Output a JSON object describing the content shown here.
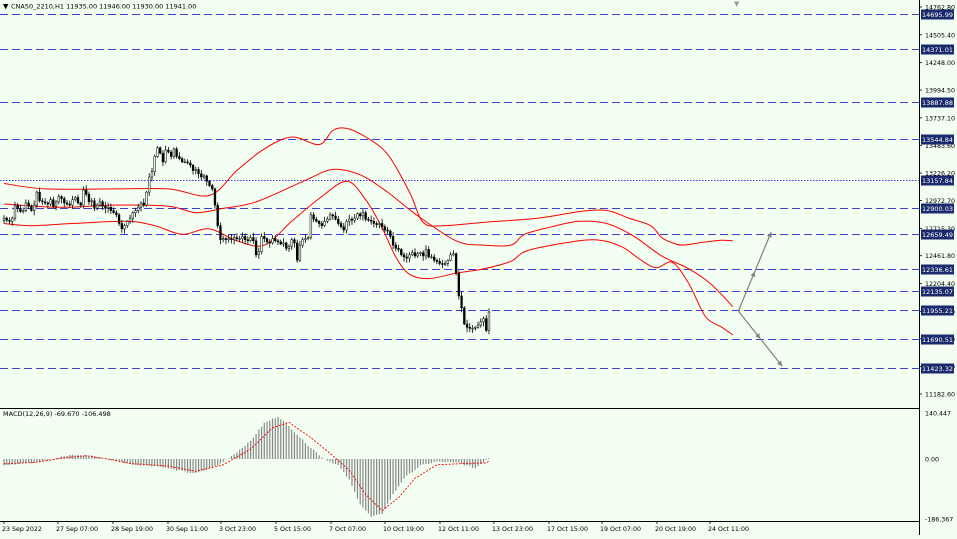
{
  "header": {
    "symbol_info": "CNA50_2210,H1  11935.00 11946.00 11930.00 11941.00",
    "macd_info": "MACD(12,26,9) -69.670 -106.498"
  },
  "colors": {
    "background": "#f1fef1",
    "candle": "#000000",
    "bollinger": "#ff0000",
    "level_line": "#0000cc",
    "level_label_bg": "#1a2a6c",
    "level_label_text": "#ffffff",
    "arrow": "#808080",
    "macd_hist": "#888888",
    "signal": "#ff0000"
  },
  "chart_data": [
    {
      "type": "candlestick",
      "instrument": "CNA50_2210",
      "timeframe": "H1",
      "ohlc_last": {
        "open": 11935.0,
        "high": 11946.0,
        "low": 11930.0,
        "close": 11941.0
      },
      "ylim": [
        11000,
        14800
      ],
      "y_ticks": [
        14762.8,
        14505.4,
        14248.0,
        13994.5,
        13737.1,
        13483.6,
        13226.2,
        12972.7,
        12715.3,
        12461.8,
        12204.4,
        11947.0,
        11693.5,
        11436.1,
        11182.6
      ],
      "x_ticks": [
        "23 Sep 2022",
        "27 Sep 07:00",
        "28 Sep 19:00",
        "30 Sep 11:00",
        "3 Oct 23:00",
        "5 Oct 15:00",
        "7 Oct 07:00",
        "10 Oct 19:00",
        "12 Oct 11:00",
        "13 Oct 23:00",
        "17 Oct 15:00",
        "19 Oct 07:00",
        "20 Oct 19:00",
        "24 Oct 11:00"
      ],
      "levels": [
        {
          "value": 14695.99,
          "style": "dashed",
          "label": "14695.99"
        },
        {
          "value": 14371.01,
          "style": "dashed",
          "label": "14371.01"
        },
        {
          "value": 13887.88,
          "style": "dashed",
          "label": "13887.88"
        },
        {
          "value": 13544.84,
          "style": "dashed",
          "label": "13544.84"
        },
        {
          "value": 13157.84,
          "style": "dotted",
          "label": "13157.84"
        },
        {
          "value": 12900.03,
          "style": "dashed",
          "label": "12900.03"
        },
        {
          "value": 12659.49,
          "style": "dashed",
          "label": "12659.49"
        },
        {
          "value": 12336.61,
          "style": "dashed",
          "label": "12336.61"
        },
        {
          "value": 12135.07,
          "style": "dashed",
          "label": "12135.07"
        },
        {
          "value": 11955.21,
          "style": "dashed",
          "label": "11955.21"
        },
        {
          "value": 11690.51,
          "style": "dashed",
          "label": "11690.51"
        },
        {
          "value": 11423.32,
          "style": "dashed",
          "label": "11423.32"
        }
      ],
      "close_series": [
        12810,
        12790,
        12780,
        12810,
        12930,
        12900,
        12870,
        12880,
        12950,
        12920,
        12880,
        12930,
        13050,
        12970,
        12960,
        12950,
        12940,
        12980,
        12920,
        12960,
        13010,
        12990,
        12950,
        12940,
        12930,
        12980,
        13000,
        12950,
        12930,
        13070,
        13030,
        12960,
        12970,
        12900,
        12930,
        12960,
        12920,
        12900,
        12910,
        12880,
        12860,
        12840,
        12760,
        12710,
        12740,
        12780,
        12810,
        12860,
        12880,
        12910,
        12950,
        12930,
        13050,
        13190,
        13240,
        13380,
        13460,
        13410,
        13330,
        13440,
        13420,
        13380,
        13450,
        13380,
        13360,
        13330,
        13330,
        13320,
        13300,
        13250,
        13260,
        13220,
        13190,
        13200,
        13150,
        13110,
        13080,
        12930,
        12740,
        12610,
        12620,
        12610,
        12620,
        12610,
        12630,
        12620,
        12620,
        12640,
        12610,
        12600,
        12630,
        12600,
        12470,
        12500,
        12640,
        12620,
        12590,
        12580,
        12620,
        12600,
        12590,
        12570,
        12580,
        12530,
        12550,
        12610,
        12580,
        12420,
        12560,
        12610,
        12620,
        12630,
        12840,
        12800,
        12780,
        12760,
        12740,
        12780,
        12800,
        12840,
        12830,
        12800,
        12760,
        12730,
        12700,
        12780,
        12800,
        12790,
        12810,
        12850,
        12830,
        12860,
        12800,
        12790,
        12780,
        12760,
        12750,
        12760,
        12730,
        12700,
        12690,
        12640,
        12560,
        12530,
        12520,
        12470,
        12450,
        12440,
        12470,
        12490,
        12460,
        12480,
        12490,
        12460,
        12520,
        12450,
        12450,
        12420,
        12410,
        12390,
        12380,
        12390,
        12420,
        12470,
        12480,
        12300,
        12090,
        11980,
        11830,
        11800,
        11790,
        11790,
        11800,
        11820,
        11850,
        11880,
        11770,
        11941
      ],
      "bollinger": {
        "upper": [
          [
            0,
            13130
          ],
          [
            15,
            13080
          ],
          [
            40,
            13080
          ],
          [
            60,
            13080
          ],
          [
            75,
            13020
          ],
          [
            85,
            13250
          ],
          [
            95,
            13450
          ],
          [
            105,
            13560
          ],
          [
            115,
            13490
          ],
          [
            120,
            13620
          ],
          [
            125,
            13640
          ],
          [
            132,
            13560
          ],
          [
            140,
            13400
          ],
          [
            148,
            13050
          ],
          [
            153,
            12770
          ],
          [
            160,
            12740
          ],
          [
            175,
            12770
          ],
          [
            195,
            12810
          ],
          [
            210,
            12870
          ],
          [
            220,
            12880
          ],
          [
            228,
            12810
          ],
          [
            236,
            12740
          ],
          [
            240,
            12630
          ],
          [
            244,
            12580
          ],
          [
            248,
            12560
          ],
          [
            256,
            12590
          ],
          [
            262,
            12605
          ],
          [
            266,
            12600
          ]
        ],
        "middle": [
          [
            0,
            12940
          ],
          [
            20,
            12910
          ],
          [
            40,
            12930
          ],
          [
            60,
            12920
          ],
          [
            70,
            12860
          ],
          [
            80,
            12900
          ],
          [
            92,
            12960
          ],
          [
            110,
            13160
          ],
          [
            120,
            13260
          ],
          [
            130,
            13210
          ],
          [
            140,
            13050
          ],
          [
            150,
            12850
          ],
          [
            165,
            12600
          ],
          [
            175,
            12560
          ],
          [
            185,
            12560
          ],
          [
            190,
            12660
          ],
          [
            200,
            12730
          ],
          [
            210,
            12780
          ],
          [
            220,
            12760
          ],
          [
            230,
            12640
          ],
          [
            240,
            12460
          ],
          [
            250,
            12340
          ],
          [
            258,
            12200
          ],
          [
            266,
            11990
          ]
        ],
        "lower": [
          [
            0,
            12760
          ],
          [
            10,
            12740
          ],
          [
            25,
            12760
          ],
          [
            45,
            12780
          ],
          [
            55,
            12740
          ],
          [
            65,
            12660
          ],
          [
            75,
            12710
          ],
          [
            85,
            12600
          ],
          [
            95,
            12560
          ],
          [
            105,
            12780
          ],
          [
            115,
            12990
          ],
          [
            125,
            13150
          ],
          [
            132,
            12980
          ],
          [
            138,
            12720
          ],
          [
            143,
            12450
          ],
          [
            148,
            12290
          ],
          [
            155,
            12250
          ],
          [
            165,
            12300
          ],
          [
            175,
            12340
          ],
          [
            185,
            12410
          ],
          [
            190,
            12500
          ],
          [
            200,
            12560
          ],
          [
            215,
            12610
          ],
          [
            225,
            12550
          ],
          [
            232,
            12430
          ],
          [
            238,
            12350
          ],
          [
            244,
            12400
          ],
          [
            250,
            12200
          ],
          [
            256,
            11900
          ],
          [
            262,
            11800
          ],
          [
            266,
            11730
          ]
        ]
      },
      "arrows": [
        {
          "from": [
            268,
            11950
          ],
          "to": [
            280,
            12680
          ]
        },
        {
          "from": [
            268,
            11950
          ],
          "to": [
            284,
            11440
          ]
        }
      ]
    },
    {
      "type": "macd",
      "title": "MACD(12,26,9) -69.670 -106.498",
      "params": [
        12,
        26,
        9
      ],
      "macd_last": -69.67,
      "signal_last": -106.498,
      "ylim": [
        -186.367,
        140.447
      ],
      "y_ticks": [
        140.447,
        0.0,
        -186.367
      ],
      "histogram_keys": [
        [
          0,
          -18
        ],
        [
          10,
          -12
        ],
        [
          18,
          2
        ],
        [
          25,
          12
        ],
        [
          32,
          10
        ],
        [
          38,
          -2
        ],
        [
          42,
          -8
        ],
        [
          48,
          -18
        ],
        [
          56,
          -22
        ],
        [
          66,
          -40
        ],
        [
          70,
          -45
        ],
        [
          78,
          -20
        ],
        [
          84,
          15
        ],
        [
          90,
          55
        ],
        [
          95,
          110
        ],
        [
          100,
          130
        ],
        [
          104,
          100
        ],
        [
          110,
          50
        ],
        [
          116,
          5
        ],
        [
          122,
          -20
        ],
        [
          126,
          -65
        ],
        [
          130,
          -140
        ],
        [
          134,
          -180
        ],
        [
          138,
          -170
        ],
        [
          142,
          -110
        ],
        [
          146,
          -60
        ],
        [
          152,
          -20
        ],
        [
          158,
          -8
        ],
        [
          166,
          -12
        ],
        [
          172,
          -28
        ],
        [
          178,
          10
        ],
        [
          182,
          70
        ],
        [
          186,
          90
        ],
        [
          190,
          75
        ],
        [
          196,
          40
        ],
        [
          202,
          15
        ],
        [
          208,
          25
        ],
        [
          214,
          35
        ],
        [
          220,
          10
        ],
        [
          226,
          -40
        ],
        [
          232,
          -85
        ],
        [
          238,
          -100
        ],
        [
          244,
          -80
        ],
        [
          250,
          -40
        ],
        [
          254,
          -20
        ],
        [
          258,
          -100
        ],
        [
          262,
          -150
        ],
        [
          264,
          -140
        ],
        [
          266,
          -100
        ]
      ],
      "signal_keys": [
        [
          0,
          -15
        ],
        [
          12,
          -10
        ],
        [
          22,
          4
        ],
        [
          30,
          10
        ],
        [
          38,
          0
        ],
        [
          46,
          -14
        ],
        [
          60,
          -22
        ],
        [
          70,
          -38
        ],
        [
          80,
          -18
        ],
        [
          90,
          30
        ],
        [
          98,
          95
        ],
        [
          104,
          112
        ],
        [
          112,
          65
        ],
        [
          120,
          10
        ],
        [
          126,
          -35
        ],
        [
          132,
          -110
        ],
        [
          138,
          -160
        ],
        [
          144,
          -120
        ],
        [
          150,
          -60
        ],
        [
          158,
          -18
        ],
        [
          168,
          -14
        ],
        [
          176,
          -12
        ],
        [
          184,
          45
        ],
        [
          190,
          72
        ],
        [
          198,
          42
        ],
        [
          206,
          22
        ],
        [
          214,
          28
        ],
        [
          222,
          15
        ],
        [
          230,
          -40
        ],
        [
          238,
          -88
        ],
        [
          246,
          -80
        ],
        [
          254,
          -45
        ],
        [
          258,
          -60
        ],
        [
          262,
          -110
        ],
        [
          266,
          -106
        ]
      ]
    }
  ]
}
